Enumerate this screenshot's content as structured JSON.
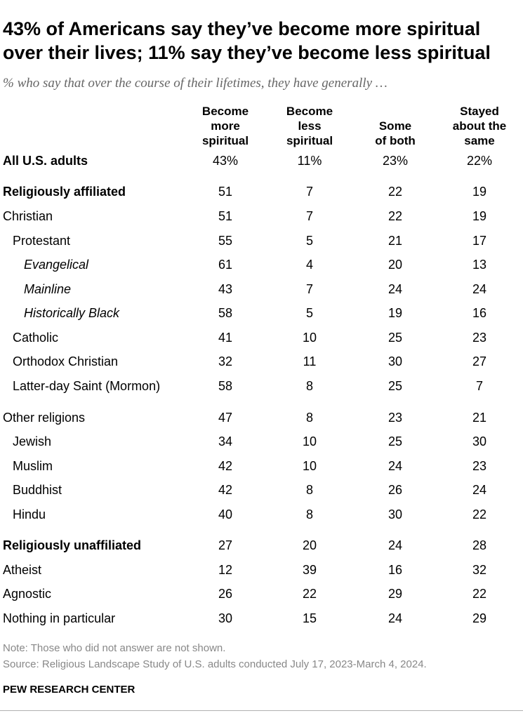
{
  "title": "43% of Americans say they’ve become more spiritual over their lives; 11% say they’ve become less spiritual",
  "subtitle": "% who say that over the course of their lifetimes, they have generally …",
  "chart_data": {
    "type": "table",
    "columns": [
      "Become more spiritual",
      "Become less spiritual",
      "Some of both",
      "Stayed about the same"
    ],
    "rows": [
      {
        "label": "All U.S. adults",
        "style": "bold",
        "values": [
          "43%",
          "11%",
          "23%",
          "22%"
        ]
      },
      {
        "label": "Religiously affiliated",
        "style": "bold",
        "values": [
          "51",
          "7",
          "22",
          "19"
        ]
      },
      {
        "label": "Christian",
        "style": "normal",
        "values": [
          "51",
          "7",
          "22",
          "19"
        ]
      },
      {
        "label": "Protestant",
        "style": "indent1",
        "values": [
          "55",
          "5",
          "21",
          "17"
        ]
      },
      {
        "label": "Evangelical",
        "style": "indent2",
        "values": [
          "61",
          "4",
          "20",
          "13"
        ]
      },
      {
        "label": "Mainline",
        "style": "indent2",
        "values": [
          "43",
          "7",
          "24",
          "24"
        ]
      },
      {
        "label": "Historically Black",
        "style": "indent2",
        "values": [
          "58",
          "5",
          "19",
          "16"
        ]
      },
      {
        "label": "Catholic",
        "style": "indent1",
        "values": [
          "41",
          "10",
          "25",
          "23"
        ]
      },
      {
        "label": "Orthodox Christian",
        "style": "indent1",
        "values": [
          "32",
          "11",
          "30",
          "27"
        ]
      },
      {
        "label": "Latter-day Saint (Mormon)",
        "style": "indent1",
        "values": [
          "58",
          "8",
          "25",
          "7"
        ]
      },
      {
        "label": "Other religions",
        "style": "normal",
        "values": [
          "47",
          "8",
          "23",
          "21"
        ]
      },
      {
        "label": "Jewish",
        "style": "indent1",
        "values": [
          "34",
          "10",
          "25",
          "30"
        ]
      },
      {
        "label": "Muslim",
        "style": "indent1",
        "values": [
          "42",
          "10",
          "24",
          "23"
        ]
      },
      {
        "label": "Buddhist",
        "style": "indent1",
        "values": [
          "42",
          "8",
          "26",
          "24"
        ]
      },
      {
        "label": "Hindu",
        "style": "indent1",
        "values": [
          "40",
          "8",
          "30",
          "22"
        ]
      },
      {
        "label": "Religiously unaffiliated",
        "style": "bold",
        "values": [
          "27",
          "20",
          "24",
          "28"
        ]
      },
      {
        "label": "Atheist",
        "style": "normal",
        "values": [
          "12",
          "39",
          "16",
          "32"
        ]
      },
      {
        "label": "Agnostic",
        "style": "normal",
        "values": [
          "26",
          "22",
          "29",
          "22"
        ]
      },
      {
        "label": "Nothing in particular",
        "style": "normal",
        "values": [
          "30",
          "15",
          "24",
          "29"
        ]
      }
    ]
  },
  "note": "Note: Those who did not answer are not shown.",
  "source": "Source: Religious Landscape Study of U.S. adults conducted July 17, 2023-March 4, 2024.",
  "org": "PEW RESEARCH CENTER"
}
